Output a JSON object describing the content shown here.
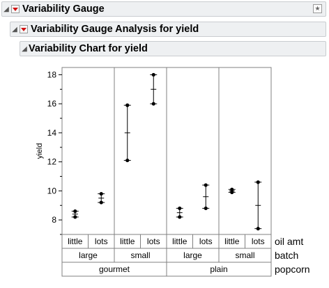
{
  "outline": {
    "level1_title": "Variability Gauge",
    "level2_title": "Variability Gauge Analysis for yield",
    "level3_title": "Variability Chart for yield"
  },
  "icons": {
    "collapse": "triangle-down-icon",
    "menu": "red-triangle-menu-icon",
    "pin": "pin-icon"
  },
  "chart_data": {
    "type": "variability",
    "ylabel": "yield",
    "ylim": [
      7,
      18.5
    ],
    "yticks": [
      8,
      10,
      12,
      14,
      16,
      18
    ],
    "factor_levels": [
      {
        "name": "oil amt",
        "labels": [
          "little",
          "lots",
          "little",
          "lots",
          "little",
          "lots",
          "little",
          "lots"
        ]
      },
      {
        "name": "batch",
        "labels": [
          "large",
          "small",
          "large",
          "small"
        ]
      },
      {
        "name": "popcorn",
        "labels": [
          "gourmet",
          "plain"
        ]
      }
    ],
    "cells": [
      {
        "oil": "little",
        "batch": "large",
        "popcorn": "gourmet",
        "points": [
          8.2,
          8.6
        ],
        "mean": 8.4
      },
      {
        "oil": "lots",
        "batch": "large",
        "popcorn": "gourmet",
        "points": [
          9.2,
          9.8
        ],
        "mean": 9.5
      },
      {
        "oil": "little",
        "batch": "small",
        "popcorn": "gourmet",
        "points": [
          12.1,
          15.9
        ],
        "mean": 14.0
      },
      {
        "oil": "lots",
        "batch": "small",
        "popcorn": "gourmet",
        "points": [
          16.0,
          18.0
        ],
        "mean": 17.0
      },
      {
        "oil": "little",
        "batch": "large",
        "popcorn": "plain",
        "points": [
          8.2,
          8.8
        ],
        "mean": 8.5
      },
      {
        "oil": "lots",
        "batch": "large",
        "popcorn": "plain",
        "points": [
          8.8,
          10.4
        ],
        "mean": 9.6
      },
      {
        "oil": "little",
        "batch": "small",
        "popcorn": "plain",
        "points": [
          9.9,
          10.1
        ],
        "mean": 10.0
      },
      {
        "oil": "lots",
        "batch": "small",
        "popcorn": "plain",
        "points": [
          7.4,
          10.6
        ],
        "mean": 9.0
      }
    ],
    "grid": false,
    "colors": {
      "points": "#000000",
      "frame": "#808080",
      "header_bg": "#eef0f2"
    }
  }
}
